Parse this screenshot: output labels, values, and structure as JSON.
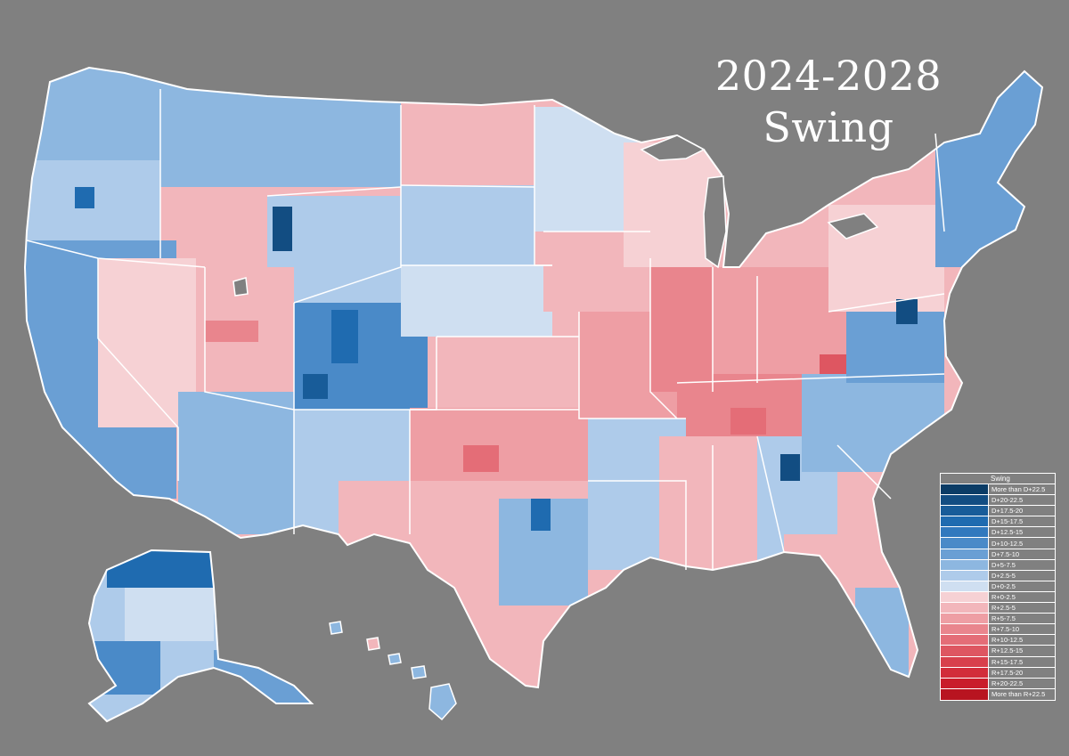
{
  "title": {
    "line1": "2024-2028",
    "line2": "Swing"
  },
  "legend": {
    "title": "Swing",
    "items": [
      {
        "label": "More than D+22.5",
        "color": "#0b3c66"
      },
      {
        "label": "D+20-22.5",
        "color": "#124d82"
      },
      {
        "label": "D+17.5-20",
        "color": "#185c99"
      },
      {
        "label": "D+15-17.5",
        "color": "#1f6bb0"
      },
      {
        "label": "D+12.5-15",
        "color": "#3179be"
      },
      {
        "label": "D+10-12.5",
        "color": "#4a8ac8"
      },
      {
        "label": "D+7.5-10",
        "color": "#6a9fd4"
      },
      {
        "label": "D+5-7.5",
        "color": "#8db7e0"
      },
      {
        "label": "D+2.5-5",
        "color": "#aecbea"
      },
      {
        "label": "D+0-2.5",
        "color": "#cfdff1"
      },
      {
        "label": "R+0-2.5",
        "color": "#f6d1d4"
      },
      {
        "label": "R+2.5-5",
        "color": "#f2b6bb"
      },
      {
        "label": "R+5-7.5",
        "color": "#ee9ea4"
      },
      {
        "label": "R+7.5-10",
        "color": "#e9858d"
      },
      {
        "label": "R+10-12.5",
        "color": "#e46d77"
      },
      {
        "label": "R+12.5-15",
        "color": "#de5661"
      },
      {
        "label": "R+15-17.5",
        "color": "#d8404c"
      },
      {
        "label": "R+17.5-20",
        "color": "#d22d3a"
      },
      {
        "label": "R+20-22.5",
        "color": "#c91d2b"
      },
      {
        "label": "More than R+22.5",
        "color": "#b81420"
      }
    ]
  },
  "colors": {
    "background": "#808080",
    "border": "#ffffff"
  }
}
